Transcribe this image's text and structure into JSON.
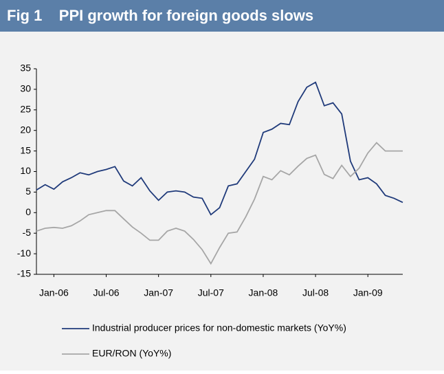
{
  "chart_data": {
    "type": "line",
    "title": "Fig 1    PPI growth for foreign goods slows",
    "categories": [
      null,
      null,
      "Jan-06",
      null,
      null,
      null,
      null,
      null,
      "Jul-06",
      null,
      null,
      null,
      null,
      null,
      "Jan-07",
      null,
      null,
      null,
      null,
      null,
      "Jul-07",
      null,
      null,
      null,
      null,
      null,
      "Jan-08",
      null,
      null,
      null,
      null,
      null,
      "Jul-08",
      null,
      null,
      null,
      null,
      null,
      "Jan-09",
      null,
      null,
      null,
      null
    ],
    "series": [
      {
        "name": "Industrial producer prices for non-domestic markets (YoY%)",
        "color": "#1f3a7a",
        "values": [
          5.5,
          6.8,
          5.7,
          7.5,
          8.5,
          9.7,
          9.2,
          10.0,
          10.5,
          11.2,
          7.7,
          6.5,
          8.5,
          5.3,
          3,
          5,
          5.3,
          5,
          3.8,
          3.5,
          -0.5,
          1.2,
          6.5,
          7,
          10,
          13,
          19.5,
          20.3,
          21.7,
          21.4,
          27,
          30.5,
          31.7,
          26,
          26.7,
          24,
          12.5,
          8,
          8.5,
          7,
          4.2,
          3.5,
          2.5
        ]
      },
      {
        "name": "EUR/RON (YoY%)",
        "color": "#a6a6a6",
        "values": [
          -4.5,
          -3.8,
          -3.6,
          -3.8,
          -3.2,
          -2,
          -0.5,
          0,
          0.5,
          0.5,
          -1.5,
          -3.5,
          -5,
          -6.7,
          -6.7,
          -4.5,
          -3.8,
          -4.5,
          -6.5,
          -9,
          -12.4,
          -8.5,
          -5,
          -4.7,
          -1,
          3.3,
          8.8,
          8,
          10.2,
          9.2,
          11.3,
          13.2,
          14,
          9.3,
          8.3,
          11.5,
          8.8,
          10.8,
          14.5,
          17,
          15,
          15,
          15
        ]
      }
    ],
    "ylim": [
      -15,
      35
    ],
    "yticks": [
      -15,
      -10,
      -5,
      0,
      5,
      10,
      15,
      20,
      25,
      30,
      35
    ]
  }
}
